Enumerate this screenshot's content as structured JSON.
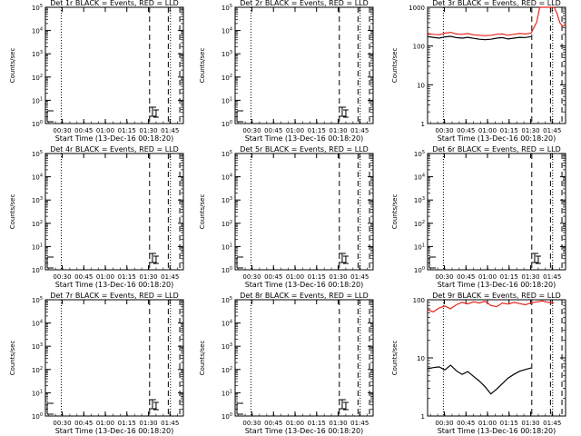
{
  "figure": {
    "xlabel": "Start Time (13-Dec-16 00:18:20)",
    "ylabel": "Counts/sec",
    "x_tick_labels": [
      "00:30",
      "00:45",
      "01:00",
      "01:15",
      "01:30",
      "01:45"
    ]
  },
  "chart_data": [
    {
      "type": "line",
      "title": "Det 1r BLACK = Events, RED = LLD",
      "xlabel": "Start Time (13-Dec-16 00:18:20)",
      "ylabel": "Counts/sec",
      "yscale": "log",
      "ylim": [
        1,
        100000
      ],
      "xlim_minutes": [
        0,
        96
      ],
      "y_tick_labels": [
        "10^0",
        "10^1",
        "10^2",
        "10^3",
        "10^4",
        "10^5"
      ],
      "dotted_markers": [
        11,
        87
      ],
      "dashed_markers": [
        72.5,
        85.5,
        93.5
      ],
      "series": []
    },
    {
      "type": "line",
      "title": "Det 2r BLACK = Events, RED = LLD",
      "xlabel": "Start Time (13-Dec-16 00:18:20)",
      "ylabel": "Counts/sec",
      "yscale": "log",
      "ylim": [
        1,
        100000
      ],
      "xlim_minutes": [
        0,
        96
      ],
      "y_tick_labels": [
        "10^0",
        "10^1",
        "10^2",
        "10^3",
        "10^4",
        "10^5"
      ],
      "dotted_markers": [
        11,
        87
      ],
      "dashed_markers": [
        72.5,
        85.5,
        93.5
      ],
      "series": []
    },
    {
      "type": "line",
      "title": "Det 3r BLACK = Events, RED = LLD",
      "xlabel": "Start Time (13-Dec-16 00:18:20)",
      "ylabel": "Counts/sec",
      "yscale": "log",
      "ylim": [
        1,
        1000
      ],
      "xlim_minutes": [
        0,
        96
      ],
      "y_tick_labels": [
        "1",
        "10",
        "100",
        "1000"
      ],
      "dotted_markers": [
        11,
        87
      ],
      "dashed_markers": [
        72.5,
        85.5,
        93.5
      ],
      "series": [
        {
          "color": "#e8251c",
          "x": [
            0,
            4,
            8,
            12,
            16,
            20,
            24,
            28,
            32,
            36,
            40,
            44,
            48,
            52,
            56,
            60,
            64,
            68,
            72,
            74,
            76,
            78,
            80,
            82,
            84,
            86,
            88,
            90,
            92,
            94,
            96
          ],
          "y": [
            210,
            200,
            195,
            215,
            225,
            205,
            200,
            210,
            195,
            190,
            185,
            190,
            200,
            205,
            190,
            200,
            210,
            205,
            215,
            300,
            420,
            1000,
            1000,
            1000,
            1000,
            1000,
            1000,
            700,
            400,
            320,
            360
          ]
        },
        {
          "color": "#000000",
          "x": [
            0,
            4,
            8,
            12,
            16,
            20,
            24,
            28,
            32,
            36,
            40,
            44,
            48,
            52,
            56,
            60,
            64,
            68,
            72
          ],
          "y": [
            175,
            168,
            160,
            172,
            178,
            165,
            160,
            168,
            158,
            150,
            146,
            150,
            160,
            165,
            152,
            160,
            168,
            166,
            175
          ]
        }
      ]
    },
    {
      "type": "line",
      "title": "Det 4r BLACK = Events, RED = LLD",
      "xlabel": "Start Time (13-Dec-16 00:18:20)",
      "ylabel": "Counts/sec",
      "yscale": "log",
      "ylim": [
        1,
        100000
      ],
      "xlim_minutes": [
        0,
        96
      ],
      "y_tick_labels": [
        "10^0",
        "10^1",
        "10^2",
        "10^3",
        "10^4",
        "10^5"
      ],
      "dotted_markers": [
        11,
        87
      ],
      "dashed_markers": [
        72.5,
        85.5,
        93.5
      ],
      "series": []
    },
    {
      "type": "line",
      "title": "Det 5r BLACK = Events, RED = LLD",
      "xlabel": "Start Time (13-Dec-16 00:18:20)",
      "ylabel": "Counts/sec",
      "yscale": "log",
      "ylim": [
        1,
        100000
      ],
      "xlim_minutes": [
        0,
        96
      ],
      "y_tick_labels": [
        "10^0",
        "10^1",
        "10^2",
        "10^3",
        "10^4",
        "10^5"
      ],
      "dotted_markers": [
        11,
        87
      ],
      "dashed_markers": [
        72.5,
        85.5,
        93.5
      ],
      "series": []
    },
    {
      "type": "line",
      "title": "Det 6r BLACK = Events, RED = LLD",
      "xlabel": "Start Time (13-Dec-16 00:18:20)",
      "ylabel": "Counts/sec",
      "yscale": "log",
      "ylim": [
        1,
        100000
      ],
      "xlim_minutes": [
        0,
        96
      ],
      "y_tick_labels": [
        "10^0",
        "10^1",
        "10^2",
        "10^3",
        "10^4",
        "10^5"
      ],
      "dotted_markers": [
        11,
        87
      ],
      "dashed_markers": [
        72.5,
        85.5,
        93.5
      ],
      "series": []
    },
    {
      "type": "line",
      "title": "Det 7r BLACK = Events, RED = LLD",
      "xlabel": "Start Time (13-Dec-16 00:18:20)",
      "ylabel": "Counts/sec",
      "yscale": "log",
      "ylim": [
        1,
        100000
      ],
      "xlim_minutes": [
        0,
        96
      ],
      "y_tick_labels": [
        "10^0",
        "10^1",
        "10^2",
        "10^3",
        "10^4",
        "10^5"
      ],
      "dotted_markers": [
        11,
        87
      ],
      "dashed_markers": [
        72.5,
        85.5,
        93.5
      ],
      "series": []
    },
    {
      "type": "line",
      "title": "Det 8r BLACK = Events, RED = LLD",
      "xlabel": "Start Time (13-Dec-16 00:18:20)",
      "ylabel": "Counts/sec",
      "yscale": "log",
      "ylim": [
        1,
        100000
      ],
      "xlim_minutes": [
        0,
        96
      ],
      "y_tick_labels": [
        "10^0",
        "10^1",
        "10^2",
        "10^3",
        "10^4",
        "10^5"
      ],
      "dotted_markers": [
        11,
        87
      ],
      "dashed_markers": [
        72.5,
        85.5,
        93.5
      ],
      "series": []
    },
    {
      "type": "line",
      "title": "Det 9r BLACK = Events, RED = LLD",
      "xlabel": "Start Time (13-Dec-16 00:18:20)",
      "ylabel": "Counts/sec",
      "yscale": "log",
      "ylim": [
        1,
        100
      ],
      "xlim_minutes": [
        0,
        96
      ],
      "y_tick_labels": [
        "1",
        "10",
        "100"
      ],
      "dotted_markers": [
        11,
        87
      ],
      "dashed_markers": [
        72.5,
        85.5,
        93.5
      ],
      "series": [
        {
          "color": "#e8251c",
          "x": [
            0,
            4,
            8,
            12,
            16,
            20,
            24,
            28,
            32,
            36,
            40,
            44,
            48,
            52,
            56,
            60,
            64,
            68,
            72,
            76,
            80,
            84,
            88
          ],
          "y": [
            68,
            62,
            72,
            78,
            70,
            82,
            90,
            85,
            92,
            88,
            94,
            80,
            76,
            88,
            84,
            90,
            86,
            82,
            88,
            92,
            95,
            90,
            88
          ]
        },
        {
          "color": "#000000",
          "x": [
            0,
            4,
            8,
            12,
            16,
            20,
            24,
            28,
            32,
            36,
            40,
            44,
            48,
            52,
            56,
            60,
            64,
            68,
            72
          ],
          "y": [
            6.5,
            6.8,
            7.0,
            6.2,
            7.5,
            6.0,
            5.2,
            5.8,
            4.8,
            4.0,
            3.2,
            2.4,
            2.9,
            3.6,
            4.5,
            5.2,
            5.9,
            6.3,
            6.7
          ]
        }
      ]
    }
  ]
}
